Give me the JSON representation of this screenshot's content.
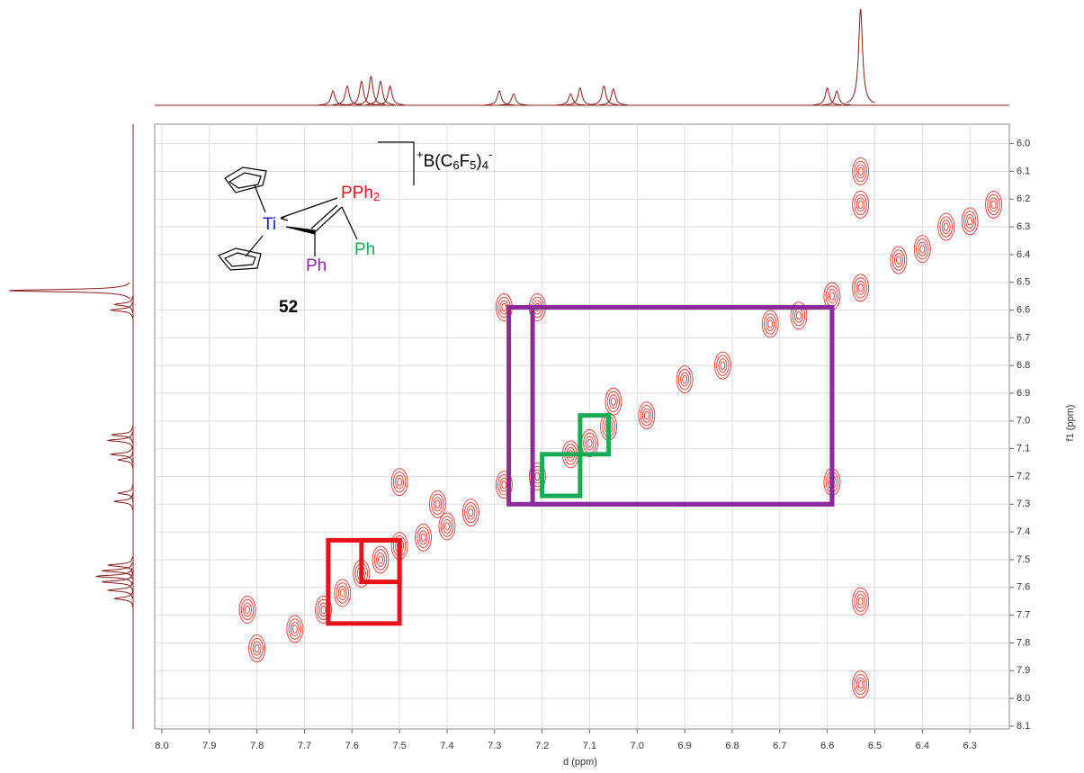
{
  "chart_data": {
    "type": "cosy",
    "x_label": "d (ppm)",
    "y_label": "f1 (ppm)",
    "xlim": [
      8.015,
      6.217
    ],
    "ylim": [
      5.93,
      8.11
    ],
    "xticks": [
      {
        "value": 8,
        "label": "8.0"
      },
      7.9,
      7.8,
      7.7,
      7.6,
      7.5,
      7.4,
      7.3,
      7.2,
      7.1,
      {
        "value": 7,
        "label": "7.0"
      },
      6.9,
      6.8,
      6.7,
      6.6,
      6.5,
      6.4,
      6.3
    ],
    "yticks": [
      {
        "value": 6,
        "label": "6.0"
      },
      6.1,
      6.2,
      6.3,
      6.4,
      6.5,
      6.6,
      6.7,
      6.8,
      6.9,
      {
        "value": 7,
        "label": "7.0"
      },
      7.1,
      7.2,
      7.3,
      7.4,
      7.5,
      7.6,
      7.7,
      7.8,
      7.9,
      {
        "value": 8,
        "label": "8.0"
      },
      8.1
    ],
    "grid": true,
    "contour_color": "#e8322f",
    "projection_color": "#8b1a1a",
    "peaks": {
      "x": [
        7.82,
        7.8,
        7.72,
        7.66,
        7.62,
        7.58,
        7.54,
        7.5,
        7.45,
        7.4,
        7.35,
        7.28,
        7.21,
        7.14,
        7.1,
        7.06,
        7.05,
        6.98,
        6.9,
        6.82,
        6.72,
        6.66,
        6.59,
        6.53,
        6.45,
        6.4,
        6.35,
        6.3,
        6.25,
        7.28,
        7.21,
        6.59,
        6.53,
        6.53,
        6.53,
        6.53,
        7.5,
        7.42
      ],
      "y": [
        7.68,
        7.82,
        7.75,
        7.68,
        7.62,
        7.55,
        7.5,
        7.45,
        7.42,
        7.38,
        7.33,
        7.23,
        7.2,
        7.12,
        7.08,
        7.02,
        6.93,
        6.98,
        6.85,
        6.8,
        6.65,
        6.62,
        6.55,
        6.52,
        6.42,
        6.38,
        6.3,
        6.28,
        6.22,
        6.59,
        6.59,
        7.22,
        6.1,
        6.22,
        7.65,
        7.95,
        7.22,
        7.3
      ]
    },
    "projection": {
      "ppm": [
        7.64,
        7.61,
        7.58,
        7.56,
        7.54,
        7.52,
        7.29,
        7.26,
        7.14,
        7.12,
        7.07,
        7.05,
        6.6,
        6.58,
        6.53
      ],
      "intensity": [
        0.15,
        0.2,
        0.25,
        0.3,
        0.25,
        0.2,
        0.15,
        0.12,
        0.12,
        0.18,
        0.2,
        0.17,
        0.18,
        0.15,
        1.0
      ]
    },
    "highlights": [
      {
        "color": "#e8121b",
        "x": [
          7.65,
          7.5
        ],
        "y": [
          7.43,
          7.73
        ]
      },
      {
        "color": "#e8121b",
        "x": [
          7.58,
          7.5
        ],
        "y": [
          7.43,
          7.58
        ]
      },
      {
        "color": "#8b2a9a",
        "x": [
          7.27,
          6.59
        ],
        "y": [
          6.59,
          7.3
        ]
      },
      {
        "color": "#8b2a9a",
        "x": [
          7.22,
          6.59
        ],
        "y": [
          6.59,
          7.3
        ]
      },
      {
        "color": "#1aaa55",
        "x": [
          7.2,
          7.12
        ],
        "y": [
          7.12,
          7.27
        ]
      },
      {
        "color": "#1aaa55",
        "x": [
          7.12,
          7.06
        ],
        "y": [
          6.98,
          7.12
        ]
      }
    ],
    "structure": {
      "compound": "52",
      "metal": "Ti",
      "phosphine": [
        "PPh",
        "2"
      ],
      "ph_green": "Ph",
      "ph_purple": "Ph",
      "counterion": [
        "+",
        "B(C",
        "6",
        "F",
        "5",
        ")",
        "4",
        "-"
      ]
    }
  }
}
